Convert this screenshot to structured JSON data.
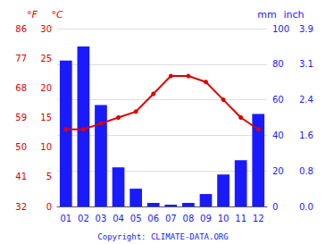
{
  "chart_data": {
    "type": "bar",
    "categories": [
      "01",
      "02",
      "03",
      "04",
      "05",
      "06",
      "07",
      "08",
      "09",
      "10",
      "11",
      "12"
    ],
    "series": [
      {
        "type": "bar",
        "color": "#1a1aff",
        "values": [
          82,
          90,
          57,
          22,
          10,
          2,
          1,
          2,
          7,
          18,
          26,
          52
        ]
      },
      {
        "type": "line",
        "color": "#dd0000",
        "marker": "circle",
        "axis": "y2",
        "values": [
          13,
          13,
          14,
          15,
          16,
          19,
          22,
          22,
          21,
          18,
          15,
          13
        ]
      }
    ],
    "ylim": [
      0,
      100
    ],
    "yticks": [
      0,
      20,
      40,
      60,
      80,
      100
    ],
    "y_label": "mm",
    "y2lim": [
      0,
      30
    ],
    "y2ticks": [
      0,
      5,
      10,
      15,
      20,
      25,
      30
    ],
    "y2_label": "°C",
    "y3lim": [
      0,
      30
    ],
    "y3ticks": [
      {
        "value": 0,
        "label": "32"
      },
      {
        "value": 5,
        "label": "41"
      },
      {
        "value": 10,
        "label": "50"
      },
      {
        "value": 15,
        "label": "59"
      },
      {
        "value": 20,
        "label": "68"
      },
      {
        "value": 25,
        "label": "77"
      },
      {
        "value": 30,
        "label": "86"
      }
    ],
    "y3_label": "°F",
    "y4lim": [
      0,
      100
    ],
    "y4ticks": [
      {
        "value": 0,
        "label": "0.0"
      },
      {
        "value": 20,
        "label": "0.8"
      },
      {
        "value": 40,
        "label": "1.6"
      },
      {
        "value": 60,
        "label": "2.4"
      },
      {
        "value": 80,
        "label": "3.1"
      },
      {
        "value": 100,
        "label": "3.9"
      }
    ],
    "y4_label": "inch",
    "grid": true,
    "annotation": "Copyright: CLIMATE-DATA.ORG"
  }
}
